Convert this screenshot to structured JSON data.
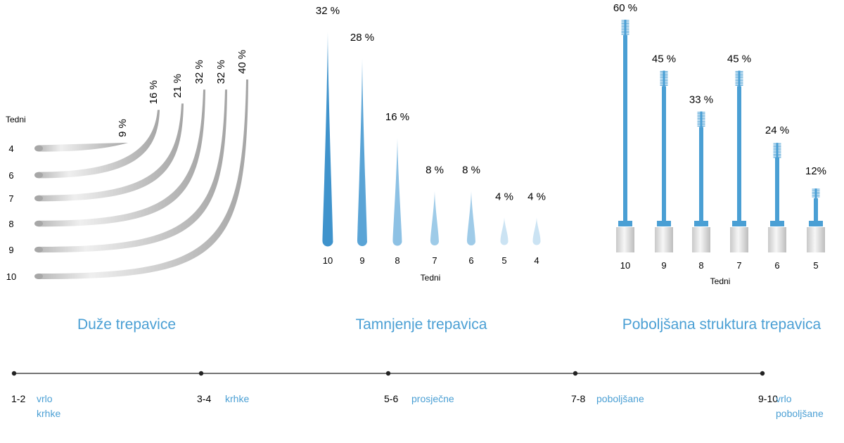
{
  "chart_data": [
    {
      "type": "line",
      "title": "Duže trepavice",
      "ylabel": "Tedni",
      "series": [
        {
          "week": "4",
          "value_label": "9 %",
          "value": 9
        },
        {
          "week": "6",
          "value_label": "16 %",
          "value": 16
        },
        {
          "week": "7",
          "value_label": "21 %",
          "value": 21
        },
        {
          "week": "8",
          "value_label": "32 %",
          "value": 32
        },
        {
          "week": "9",
          "value_label": "32 %",
          "value": 32
        },
        {
          "week": "10",
          "value_label": "40 %",
          "value": 40
        }
      ]
    },
    {
      "type": "bar",
      "title": "Tamnjenje trepavica",
      "xlabel": "Tedni",
      "categories": [
        "10",
        "9",
        "8",
        "7",
        "6",
        "5",
        "4"
      ],
      "values": [
        32,
        28,
        16,
        8,
        8,
        4,
        4
      ],
      "value_labels": [
        "32 %",
        "28 %",
        "16 %",
        "8 %",
        "8 %",
        "4 %",
        "4 %"
      ]
    },
    {
      "type": "bar",
      "title": "Poboljšana struktura trepavica",
      "xlabel": "Tedni",
      "categories": [
        "10",
        "9",
        "8",
        "7",
        "6",
        "5"
      ],
      "values": [
        60,
        45,
        33,
        45,
        24,
        12
      ],
      "value_labels": [
        "60 %",
        "45 %",
        "33 %",
        "45 %",
        "24 %",
        "12%"
      ]
    }
  ],
  "timeline": {
    "points": [
      {
        "weeks": "1-2",
        "label_lines": [
          "vrlo",
          "krhke"
        ]
      },
      {
        "weeks": "3-4",
        "label_lines": [
          "krhke"
        ]
      },
      {
        "weeks": "5-6",
        "label_lines": [
          "prosječne"
        ]
      },
      {
        "weeks": "7-8",
        "label_lines": [
          "poboljšane"
        ]
      },
      {
        "weeks": "9-10",
        "label_lines": [
          "vrlo",
          "poboljšane"
        ]
      }
    ]
  },
  "colors": {
    "accent": "#4a9fd4",
    "dark_blue": "#3f93cc",
    "gray": "#a9a9a9",
    "text": "#111111"
  }
}
